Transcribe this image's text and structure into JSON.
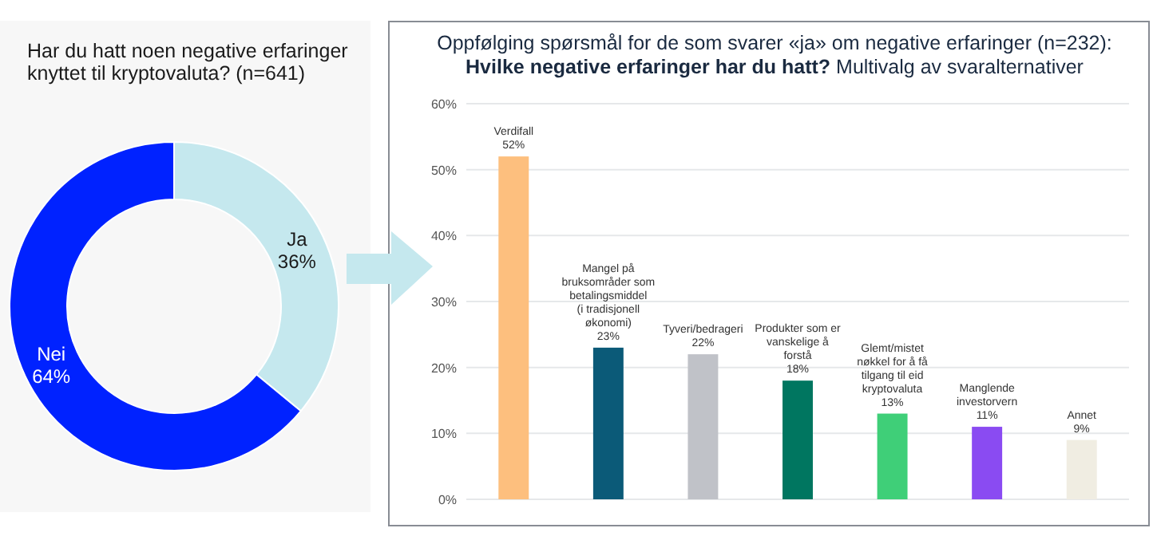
{
  "chart_data": [
    {
      "type": "donut",
      "title": "Har du hatt noen negative erfaringer knyttet til kryptovaluta? (n=641)",
      "categories": [
        "Ja",
        "Nei"
      ],
      "values": [
        36,
        64
      ],
      "colors": [
        "#c5e8ee",
        "#0022ff"
      ],
      "value_labels": [
        "36%",
        "64%"
      ]
    },
    {
      "type": "bar",
      "title": "Oppfølging spørsmål for de som svarer «ja» om negative erfaringer (n=232):",
      "subtitle": "Hvilke negative erfaringer har du hatt? Multivalg av svaralternativer",
      "categories": [
        "Verdifall",
        "Mangel på bruksområder som betalingsmiddel (i tradisjonell økonomi)",
        "Tyveri/bedrageri",
        "Produkter som er vanskelige å forstå",
        "Glemt/mistet nøkkel for å få tilgang til eid kryptovaluta",
        "Manglende investorvern",
        "Annet"
      ],
      "values": [
        52,
        23,
        22,
        18,
        13,
        11,
        9
      ],
      "colors": [
        "#fdbf7e",
        "#0b5a78",
        "#c0c2c8",
        "#007660",
        "#3fcf78",
        "#8a4bf2",
        "#f0ede2"
      ],
      "value_labels": [
        "52%",
        "23%",
        "22%",
        "18%",
        "13%",
        "11%",
        "9%"
      ],
      "ylim": [
        0,
        60
      ],
      "yticks": [
        {
          "value": 0,
          "label": "0%"
        },
        {
          "value": 10,
          "label": "10%"
        },
        {
          "value": 20,
          "label": "20%"
        },
        {
          "value": 30,
          "label": "30%"
        },
        {
          "value": 40,
          "label": "40%"
        },
        {
          "value": 50,
          "label": "50%"
        },
        {
          "value": 60,
          "label": "60%"
        }
      ],
      "grid": "y"
    }
  ]
}
